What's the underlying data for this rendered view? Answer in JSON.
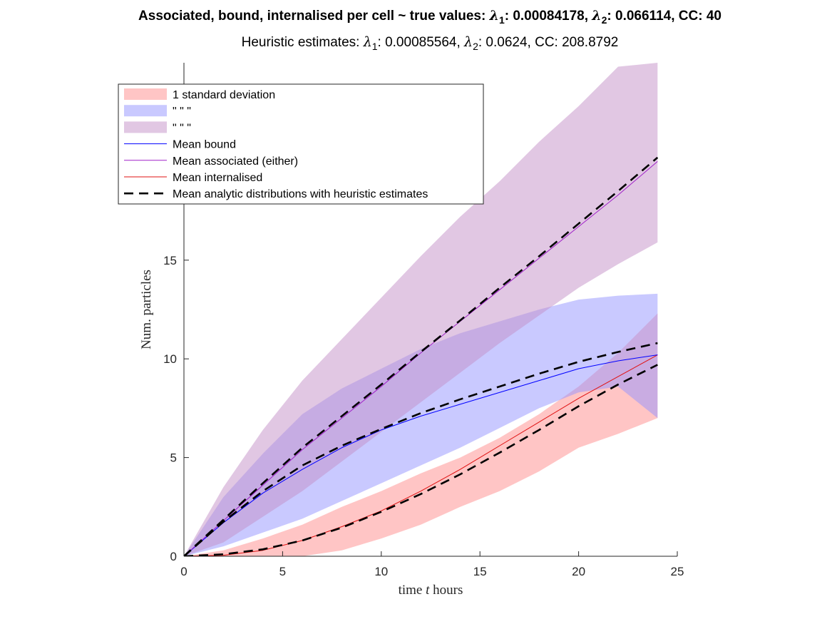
{
  "title": {
    "line1_prefix": "Associated, bound, internalised per cell ~ true values: ",
    "lambda": "λ",
    "sub1": "1",
    "sub2": "2",
    "line1_l1_value": ": 0.00084178, ",
    "line1_l2_value": ": 0.066114, CC: 40",
    "line2_prefix": "Heuristic estimates: ",
    "line2_l1_value": ": 0.00085564, ",
    "line2_l2_value": ": 0.0624, CC: 208.8792"
  },
  "chart_data": {
    "type": "area",
    "xlabel_prefix": "time ",
    "xlabel_var": "t",
    "xlabel_suffix": " hours",
    "ylabel": "Num. particles",
    "xlim": [
      0,
      25
    ],
    "ylim": [
      0,
      25
    ],
    "xticks": [
      0,
      5,
      10,
      15,
      20,
      25
    ],
    "yticks": [
      0,
      5,
      10,
      15
    ],
    "grid": false,
    "legend_position": "top-left",
    "colors": {
      "red_band": "#ff8c8c",
      "blue_band": "#9494ff",
      "purple_band": "#c48fc8",
      "mean_bound": "#0000ff",
      "mean_associated": "#a020c8",
      "mean_internalised": "#e01010",
      "analytic": "#000000"
    },
    "legend": [
      {
        "label": "1 standard deviation",
        "kind": "patch",
        "color": "red_band"
      },
      {
        "label": "\" \" \"",
        "kind": "patch",
        "color": "blue_band"
      },
      {
        "label": "\" \" \"",
        "kind": "patch",
        "color": "purple_band"
      },
      {
        "label": "Mean bound",
        "kind": "line",
        "color": "mean_bound"
      },
      {
        "label": "Mean associated (either)",
        "kind": "line",
        "color": "mean_associated"
      },
      {
        "label": "Mean internalised",
        "kind": "line",
        "color": "mean_internalised"
      },
      {
        "label": "Mean analytic distributions with heuristic estimates",
        "kind": "dash",
        "color": "analytic"
      }
    ],
    "x": [
      0,
      2,
      4,
      6,
      8,
      10,
      12,
      14,
      16,
      18,
      20,
      22,
      24
    ],
    "bands": [
      {
        "name": "1 standard deviation",
        "color": "red_band",
        "lower": [
          0,
          0,
          0,
          0,
          0.3,
          0.9,
          1.6,
          2.5,
          3.3,
          4.3,
          5.5,
          6.2,
          7.0
        ],
        "upper": [
          0,
          0.3,
          0.9,
          1.6,
          2.5,
          3.3,
          4.2,
          5.0,
          6.0,
          7.2,
          8.6,
          10.3,
          12.3
        ]
      },
      {
        "name": "\" \" \"",
        "color": "blue_band",
        "lower": [
          0,
          0.5,
          1.2,
          1.9,
          2.8,
          3.7,
          4.6,
          5.5,
          6.5,
          7.5,
          8.3,
          8.6,
          7.0
        ],
        "upper": [
          0,
          3.0,
          5.2,
          7.2,
          8.5,
          9.5,
          10.5,
          11.3,
          11.9,
          12.5,
          13.0,
          13.2,
          13.3
        ]
      },
      {
        "name": "\" \" \"",
        "color": "purple_band",
        "lower": [
          0,
          0.7,
          2.0,
          3.3,
          4.8,
          6.3,
          7.8,
          9.3,
          10.8,
          12.2,
          13.6,
          14.8,
          15.9
        ],
        "upper": [
          0,
          3.5,
          6.4,
          8.9,
          11.0,
          13.1,
          15.2,
          17.2,
          19.0,
          21.0,
          22.8,
          24.8,
          25.0
        ]
      }
    ],
    "series": [
      {
        "name": "Mean internalised",
        "color": "mean_internalised",
        "style": "solid",
        "values": [
          0,
          0.05,
          0.3,
          0.8,
          1.5,
          2.3,
          3.3,
          4.4,
          5.6,
          6.8,
          8.0,
          9.1,
          10.2
        ]
      },
      {
        "name": "Mean bound",
        "color": "mean_bound",
        "style": "solid",
        "values": [
          0,
          1.7,
          3.2,
          4.4,
          5.5,
          6.4,
          7.1,
          7.7,
          8.3,
          8.9,
          9.5,
          9.9,
          10.2
        ]
      },
      {
        "name": "Mean associated (either)",
        "color": "mean_associated",
        "style": "solid",
        "values": [
          0,
          1.8,
          3.6,
          5.4,
          7.0,
          8.6,
          10.3,
          11.9,
          13.5,
          15.1,
          16.7,
          18.3,
          20.0
        ]
      },
      {
        "name": "Mean analytic distributions with heuristic estimates",
        "color": "analytic",
        "style": "dash",
        "values": [
          0,
          0.1,
          0.35,
          0.8,
          1.45,
          2.25,
          3.15,
          4.15,
          5.25,
          6.4,
          7.6,
          8.7,
          9.7
        ]
      },
      {
        "name": "Mean analytic distributions with heuristic estimates",
        "color": "analytic",
        "style": "dash",
        "values": [
          0,
          1.75,
          3.3,
          4.6,
          5.6,
          6.45,
          7.25,
          7.95,
          8.6,
          9.25,
          9.85,
          10.35,
          10.8
        ]
      },
      {
        "name": "Mean analytic distributions with heuristic estimates",
        "color": "analytic",
        "style": "dash",
        "values": [
          0,
          1.85,
          3.7,
          5.5,
          7.1,
          8.7,
          10.35,
          11.95,
          13.6,
          15.2,
          16.85,
          18.5,
          20.2
        ]
      }
    ]
  }
}
